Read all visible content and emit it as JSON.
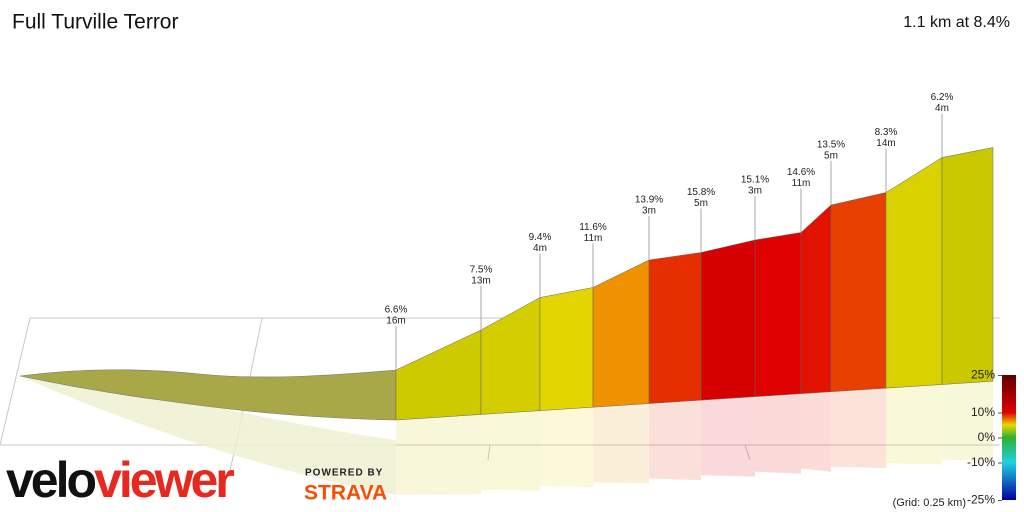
{
  "chart_data": {
    "type": "elevation-profile",
    "title": "Full Turville Terror",
    "subtitle": "1.1 km at 8.4%",
    "segments": [
      {
        "gradient": {
          "value": 6.6,
          "label": "6.6%"
        },
        "gain": {
          "value": 16,
          "label": "16m"
        }
      },
      {
        "gradient": {
          "value": 7.5,
          "label": "7.5%"
        },
        "gain": {
          "value": 13,
          "label": "13m"
        }
      },
      {
        "gradient": {
          "value": 9.4,
          "label": "9.4%"
        },
        "gain": {
          "value": 4,
          "label": "4m"
        }
      },
      {
        "gradient": {
          "value": 11.6,
          "label": "11.6%"
        },
        "gain": {
          "value": 11,
          "label": "11m"
        }
      },
      {
        "gradient": {
          "value": 13.9,
          "label": "13.9%"
        },
        "gain": {
          "value": 3,
          "label": "3m"
        }
      },
      {
        "gradient": {
          "value": 15.8,
          "label": "15.8%"
        },
        "gain": {
          "value": 5,
          "label": "5m"
        }
      },
      {
        "gradient": {
          "value": 15.1,
          "label": "15.1%"
        },
        "gain": {
          "value": 3,
          "label": "3m"
        }
      },
      {
        "gradient": {
          "value": 14.6,
          "label": "14.6%"
        },
        "gain": {
          "value": 11,
          "label": "11m"
        }
      },
      {
        "gradient": {
          "value": 13.5,
          "label": "13.5%"
        },
        "gain": {
          "value": 5,
          "label": "5m"
        }
      },
      {
        "gradient": {
          "value": 8.3,
          "label": "8.3%"
        },
        "gain": {
          "value": 14,
          "label": "14m"
        }
      },
      {
        "gradient": {
          "value": 6.2,
          "label": "6.2%"
        },
        "gain": {
          "value": 4,
          "label": "4m"
        }
      }
    ],
    "colorbar_ticks": [
      {
        "value": 25,
        "label": "25%"
      },
      {
        "value": 10,
        "label": "10%"
      },
      {
        "value": 0,
        "label": "0%"
      },
      {
        "value": -10,
        "label": "-10%"
      },
      {
        "value": -25,
        "label": "-25%"
      }
    ],
    "grid_note": "(Grid: 0.25 km)"
  },
  "logo": {
    "velo": "velo",
    "viewer": "viewer",
    "powered_by": "POWERED BY",
    "strava": "STRAVA"
  }
}
